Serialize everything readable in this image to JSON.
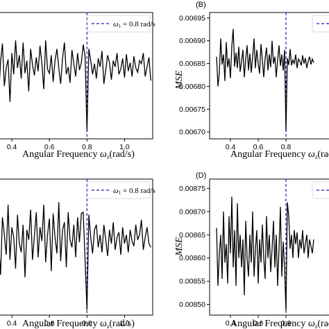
{
  "colors": {
    "series": "#000000",
    "marker": "#1f1fbf",
    "frame": "#000000"
  },
  "chart_data": [
    {
      "panel": "A",
      "type": "line",
      "panel_letter": "",
      "xlabel": "Angular Frequency ω_s(rad/s)",
      "ylabel": "",
      "x_ticks": [
        0.4,
        0.6,
        0.8,
        1.0
      ],
      "x_tick_labels": [
        "0.4",
        "0.6",
        "0.8",
        "1.0"
      ],
      "y_ticks": [],
      "y_tick_labels": [],
      "xlim": [
        0.3,
        1.15
      ],
      "ylim": [
        0.0,
        1.0
      ],
      "legend": {
        "text": "ω_1 = 0.8 rad/s",
        "position": "top-right"
      },
      "vline_x": 0.8,
      "y_note": "y axis tick labels not visible (cropped); values in normalized units",
      "x": [
        0.28,
        0.29,
        0.3,
        0.31,
        0.32,
        0.33,
        0.34,
        0.35,
        0.36,
        0.37,
        0.38,
        0.39,
        0.4,
        0.41,
        0.42,
        0.43,
        0.44,
        0.45,
        0.46,
        0.47,
        0.48,
        0.49,
        0.5,
        0.51,
        0.52,
        0.53,
        0.54,
        0.55,
        0.56,
        0.57,
        0.58,
        0.59,
        0.6,
        0.61,
        0.62,
        0.63,
        0.64,
        0.65,
        0.66,
        0.67,
        0.68,
        0.69,
        0.7,
        0.71,
        0.72,
        0.73,
        0.74,
        0.75,
        0.76,
        0.77,
        0.78,
        0.79,
        0.8,
        0.81,
        0.82,
        0.83,
        0.84,
        0.85,
        0.86,
        0.87,
        0.88,
        0.89,
        0.9,
        0.91,
        0.92,
        0.93,
        0.94,
        0.95,
        0.96,
        0.97,
        0.98,
        0.99,
        1.0,
        1.01,
        1.02,
        1.03,
        1.04,
        1.05,
        1.06,
        1.07,
        1.08,
        1.09,
        1.1,
        1.11,
        1.12,
        1.13,
        1.14
      ],
      "values": [
        0.55,
        0.52,
        0.72,
        0.48,
        0.78,
        0.35,
        0.68,
        0.85,
        0.45,
        0.62,
        0.7,
        0.3,
        0.76,
        0.56,
        0.88,
        0.62,
        0.74,
        0.52,
        0.86,
        0.57,
        0.69,
        0.4,
        0.8,
        0.65,
        0.55,
        0.72,
        0.59,
        0.83,
        0.66,
        0.42,
        0.88,
        0.61,
        0.57,
        0.74,
        0.49,
        0.69,
        0.8,
        0.62,
        0.47,
        0.71,
        0.86,
        0.56,
        0.63,
        0.48,
        0.79,
        0.66,
        0.54,
        0.76,
        0.6,
        0.67,
        0.84,
        0.73,
        0.02,
        0.8,
        0.69,
        0.56,
        0.66,
        0.52,
        0.71,
        0.63,
        0.78,
        0.47,
        0.6,
        0.74,
        0.67,
        0.51,
        0.69,
        0.63,
        0.76,
        0.56,
        0.61,
        0.71,
        0.53,
        0.75,
        0.59,
        0.67,
        0.54,
        0.73,
        0.62,
        0.58,
        0.69,
        0.66,
        0.76,
        0.54,
        0.63,
        0.72,
        0.5
      ]
    },
    {
      "panel": "B",
      "type": "line",
      "panel_letter": "(B)",
      "xlabel": "Angular Frequency ω_s(rad/s)",
      "ylabel": "MSE",
      "x_ticks": [
        0.4,
        0.6,
        0.8
      ],
      "x_tick_labels": [
        "0.4",
        "0.6",
        "0.8"
      ],
      "y_ticks": [
        0.0067,
        0.00675,
        0.0068,
        0.00685,
        0.0069,
        0.00695
      ],
      "y_tick_labels": [
        "0.00670",
        "0.00675",
        "0.00680",
        "0.00685",
        "0.00690",
        "0.00695"
      ],
      "xlim": [
        0.25,
        1.15
      ],
      "ylim": [
        0.006685,
        0.006962
      ],
      "legend": {
        "text": "",
        "position": "top-right"
      },
      "vline_x": 0.8,
      "x": [
        0.3,
        0.31,
        0.32,
        0.33,
        0.34,
        0.35,
        0.36,
        0.37,
        0.38,
        0.39,
        0.4,
        0.41,
        0.42,
        0.43,
        0.44,
        0.45,
        0.46,
        0.47,
        0.48,
        0.49,
        0.5,
        0.51,
        0.52,
        0.53,
        0.54,
        0.55,
        0.56,
        0.57,
        0.58,
        0.59,
        0.6,
        0.61,
        0.62,
        0.63,
        0.64,
        0.65,
        0.66,
        0.67,
        0.68,
        0.69,
        0.7,
        0.71,
        0.72,
        0.73,
        0.74,
        0.75,
        0.76,
        0.77,
        0.78,
        0.79,
        0.8,
        0.81,
        0.82,
        0.83,
        0.84,
        0.85,
        0.86,
        0.87,
        0.88,
        0.89,
        0.9,
        0.91,
        0.92,
        0.93,
        0.94,
        0.95,
        0.96,
        0.97,
        0.98,
        0.99,
        1.0
      ],
      "values": [
        0.006865,
        0.0068,
        0.00683,
        0.006905,
        0.006848,
        0.00687,
        0.006812,
        0.006897,
        0.006842,
        0.006861,
        0.006818,
        0.006888,
        0.006926,
        0.006843,
        0.006874,
        0.00684,
        0.006887,
        0.006832,
        0.006855,
        0.00688,
        0.00682,
        0.00686,
        0.00689,
        0.006835,
        0.006872,
        0.00683,
        0.006865,
        0.006905,
        0.00684,
        0.00688,
        0.00685,
        0.006828,
        0.006893,
        0.006858,
        0.00682,
        0.006862,
        0.006885,
        0.006835,
        0.00687,
        0.006842,
        0.0069,
        0.00685,
        0.006865,
        0.00682,
        0.006858,
        0.00689,
        0.006845,
        0.00687,
        0.006835,
        0.00688,
        0.006702,
        0.006862,
        0.006847,
        0.006882,
        0.006846,
        0.006858,
        0.00685,
        0.00687,
        0.00684,
        0.00686,
        0.006855,
        0.006846,
        0.006868,
        0.00685,
        0.006862,
        0.00684,
        0.006855,
        0.006865,
        0.006848,
        0.00686,
        0.006852
      ]
    },
    {
      "panel": "C",
      "type": "line",
      "panel_letter": "",
      "xlabel": "Angular Frequency ω_s(rad/s)",
      "ylabel": "",
      "x_ticks": [
        0.4,
        0.6,
        0.8,
        1.0
      ],
      "x_tick_labels": [
        "0.4",
        "0.6",
        "0.8",
        "1.0"
      ],
      "y_ticks": [],
      "y_tick_labels": [],
      "xlim": [
        0.3,
        1.15
      ],
      "ylim": [
        0.0,
        1.0
      ],
      "legend": {
        "text": "ω_1 = 0.8 rad/s",
        "position": "top-right"
      },
      "vline_x": 0.8,
      "y_note": "y axis tick labels not visible (cropped); values in normalized units",
      "x": [
        0.28,
        0.29,
        0.3,
        0.31,
        0.32,
        0.33,
        0.34,
        0.35,
        0.36,
        0.37,
        0.38,
        0.39,
        0.4,
        0.41,
        0.42,
        0.43,
        0.44,
        0.45,
        0.46,
        0.47,
        0.48,
        0.49,
        0.5,
        0.51,
        0.52,
        0.53,
        0.54,
        0.55,
        0.56,
        0.57,
        0.58,
        0.59,
        0.6,
        0.61,
        0.62,
        0.63,
        0.64,
        0.65,
        0.66,
        0.67,
        0.68,
        0.69,
        0.7,
        0.71,
        0.72,
        0.73,
        0.74,
        0.75,
        0.76,
        0.77,
        0.78,
        0.79,
        0.8,
        0.81,
        0.82,
        0.83,
        0.84,
        0.85,
        0.86,
        0.87,
        0.88,
        0.89,
        0.9,
        0.91,
        0.92,
        0.93,
        0.94,
        0.95,
        0.96,
        0.97,
        0.98,
        0.99,
        1.0,
        1.01,
        1.02,
        1.03,
        1.04,
        1.05,
        1.06,
        1.07,
        1.08,
        1.09,
        1.1,
        1.11,
        1.12,
        1.13,
        1.14
      ],
      "values": [
        0.52,
        0.48,
        0.7,
        0.4,
        0.8,
        0.55,
        0.3,
        0.76,
        0.62,
        0.46,
        0.86,
        0.42,
        0.68,
        0.6,
        0.35,
        0.78,
        0.55,
        0.48,
        0.7,
        0.28,
        0.66,
        0.58,
        0.82,
        0.42,
        0.61,
        0.8,
        0.44,
        0.68,
        0.57,
        0.86,
        0.4,
        0.62,
        0.75,
        0.33,
        0.79,
        0.6,
        0.47,
        0.88,
        0.41,
        0.66,
        0.72,
        0.36,
        0.8,
        0.58,
        0.52,
        0.7,
        0.44,
        0.76,
        0.56,
        0.79,
        0.8,
        0.42,
        0.02,
        0.78,
        0.6,
        0.47,
        0.66,
        0.7,
        0.52,
        0.62,
        0.48,
        0.7,
        0.58,
        0.45,
        0.66,
        0.55,
        0.72,
        0.5,
        0.6,
        0.64,
        0.46,
        0.68,
        0.55,
        0.62,
        0.48,
        0.66,
        0.57,
        0.53,
        0.7,
        0.58,
        0.62,
        0.74,
        0.5,
        0.6,
        0.68,
        0.55,
        0.52
      ]
    },
    {
      "panel": "D",
      "type": "line",
      "panel_letter": "(D)",
      "xlabel": "Angular Frequency ω_s(rad/s)",
      "ylabel": "MSE",
      "x_ticks": [
        0.4,
        0.6,
        0.8
      ],
      "x_tick_labels": [
        "0.4",
        "0.6",
        "0.8"
      ],
      "y_ticks": [
        0.0085,
        0.00855,
        0.0086,
        0.00865,
        0.0087,
        0.00875
      ],
      "y_tick_labels": [
        "0.00850",
        "0.00855",
        "0.00860",
        "0.00865",
        "0.00870",
        "0.00875"
      ],
      "xlim": [
        0.25,
        1.15
      ],
      "ylim": [
        0.008477,
        0.00877
      ],
      "legend": {
        "text": "",
        "position": "top-right"
      },
      "vline_x": 0.8,
      "x": [
        0.3,
        0.31,
        0.32,
        0.33,
        0.34,
        0.35,
        0.36,
        0.37,
        0.38,
        0.39,
        0.4,
        0.41,
        0.42,
        0.43,
        0.44,
        0.45,
        0.46,
        0.47,
        0.48,
        0.49,
        0.5,
        0.51,
        0.52,
        0.53,
        0.54,
        0.55,
        0.56,
        0.57,
        0.58,
        0.59,
        0.6,
        0.61,
        0.62,
        0.63,
        0.64,
        0.65,
        0.66,
        0.67,
        0.68,
        0.69,
        0.7,
        0.71,
        0.72,
        0.73,
        0.74,
        0.75,
        0.76,
        0.77,
        0.78,
        0.79,
        0.8,
        0.81,
        0.82,
        0.83,
        0.84,
        0.85,
        0.86,
        0.87,
        0.88,
        0.89,
        0.9,
        0.91,
        0.92,
        0.93,
        0.94,
        0.95,
        0.96,
        0.97,
        0.98,
        0.99,
        1.0
      ],
      "values": [
        0.008665,
        0.00854,
        0.00861,
        0.00865,
        0.008555,
        0.0087,
        0.00859,
        0.00863,
        0.008545,
        0.00869,
        0.00861,
        0.008732,
        0.00858,
        0.00866,
        0.00854,
        0.008718,
        0.0086,
        0.00865,
        0.00858,
        0.00864,
        0.00852,
        0.00868,
        0.0086,
        0.00856,
        0.00865,
        0.00859,
        0.0087,
        0.00856,
        0.00862,
        0.00866,
        0.008545,
        0.00864,
        0.00859,
        0.008672,
        0.0086,
        0.008555,
        0.00869,
        0.0086,
        0.00865,
        0.00857,
        0.00862,
        0.00868,
        0.00858,
        0.00865,
        0.00854,
        0.00862,
        0.00871,
        0.00856,
        0.008635,
        0.00858,
        0.008487,
        0.00872,
        0.00869,
        0.00862,
        0.00865,
        0.0086,
        0.00866,
        0.00863,
        0.008655,
        0.0086,
        0.00864,
        0.00862,
        0.00866,
        0.00861,
        0.00863,
        0.00865,
        0.0086,
        0.00864,
        0.008625,
        0.00861,
        0.00864
      ]
    }
  ]
}
